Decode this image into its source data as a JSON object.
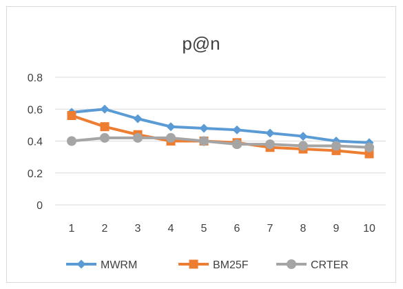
{
  "chart_data": {
    "type": "line",
    "title": "p@n",
    "xlabel": "",
    "ylabel": "",
    "categories": [
      "1",
      "2",
      "3",
      "4",
      "5",
      "6",
      "7",
      "8",
      "9",
      "10"
    ],
    "ylim": [
      0,
      0.8
    ],
    "yticks": [
      "0",
      "0.2",
      "0.4",
      "0.6",
      "0.8"
    ],
    "grid": "horizontal",
    "legend_position": "bottom",
    "series": [
      {
        "name": "MWRM",
        "color": "#5b9bd5",
        "marker": "diamond",
        "values": [
          0.58,
          0.6,
          0.54,
          0.49,
          0.48,
          0.47,
          0.45,
          0.43,
          0.4,
          0.39
        ]
      },
      {
        "name": "BM25F",
        "color": "#ed7d31",
        "marker": "square",
        "values": [
          0.56,
          0.49,
          0.44,
          0.4,
          0.4,
          0.39,
          0.36,
          0.35,
          0.34,
          0.32
        ]
      },
      {
        "name": "CRTER",
        "color": "#a5a5a5",
        "marker": "circle",
        "values": [
          0.4,
          0.42,
          0.42,
          0.42,
          0.4,
          0.38,
          0.38,
          0.37,
          0.37,
          0.36
        ]
      }
    ]
  }
}
